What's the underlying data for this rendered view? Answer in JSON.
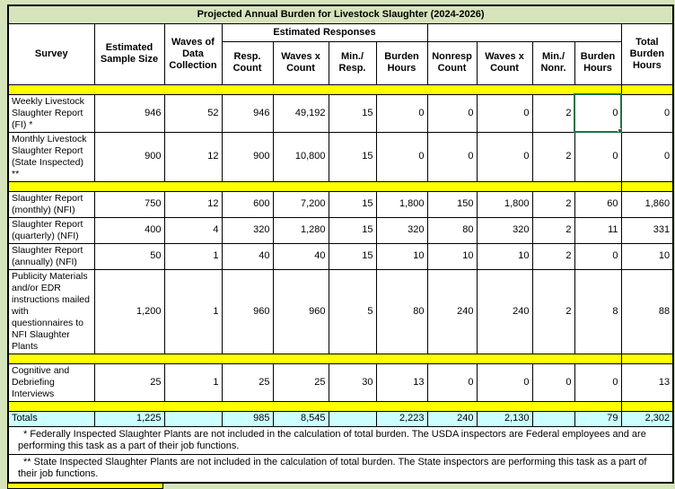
{
  "title": "Projected Annual Burden for Livestock Slaughter (2024-2026)",
  "header": {
    "survey": "Survey",
    "sample_size": "Estimated Sample Size",
    "waves": "Waves of Data Collection",
    "est_responses": "Estimated Responses",
    "nonresponse_group": "",
    "total_burden": "Total Burden Hours",
    "sub": [
      "Resp. Count",
      "Waves x Count",
      "Min./ Resp.",
      "Burden Hours",
      "Nonresp Count",
      "Waves x Count",
      "Min./ Nonr.",
      "Burden Hours"
    ]
  },
  "rows": [
    {
      "type": "separator"
    },
    {
      "type": "data",
      "survey": "Weekly Livestock Slaughter Report (FI) *",
      "values": [
        "946",
        "52",
        "946",
        "49,192",
        "15",
        "0",
        "0",
        "0",
        "2",
        "0",
        "0"
      ],
      "selected": 9
    },
    {
      "type": "data",
      "survey": "Monthly Livestock Slaughter Report (State Inspected) **",
      "values": [
        "900",
        "12",
        "900",
        "10,800",
        "15",
        "0",
        "0",
        "0",
        "2",
        "0",
        "0"
      ]
    },
    {
      "type": "separator"
    },
    {
      "type": "data",
      "survey": "Slaughter Report (monthly) (NFI)",
      "values": [
        "750",
        "12",
        "600",
        "7,200",
        "15",
        "1,800",
        "150",
        "1,800",
        "2",
        "60",
        "1,860"
      ]
    },
    {
      "type": "data",
      "survey": "Slaughter Report (quarterly) (NFI)",
      "values": [
        "400",
        "4",
        "320",
        "1,280",
        "15",
        "320",
        "80",
        "320",
        "2",
        "11",
        "331"
      ]
    },
    {
      "type": "data",
      "survey": "Slaughter Report (annually) (NFI)",
      "values": [
        "50",
        "1",
        "40",
        "40",
        "15",
        "10",
        "10",
        "10",
        "2",
        "0",
        "10"
      ]
    },
    {
      "type": "data",
      "survey": "Publicity Materials and/or EDR instructions mailed with questionnaires to NFI Slaughter Plants",
      "values": [
        "1,200",
        "1",
        "960",
        "960",
        "5",
        "80",
        "240",
        "240",
        "2",
        "8",
        "88"
      ]
    },
    {
      "type": "separator"
    },
    {
      "type": "data",
      "survey": "Cognitive and Debriefing Interviews",
      "values": [
        "25",
        "1",
        "25",
        "25",
        "30",
        "13",
        "0",
        "0",
        "0",
        "0",
        "13"
      ]
    },
    {
      "type": "separator"
    },
    {
      "type": "totals",
      "survey": "Totals",
      "values": [
        "1,225",
        "",
        "985",
        "8,545",
        "",
        "2,223",
        "240",
        "2,130",
        "",
        "79",
        "2,302"
      ]
    }
  ],
  "footnotes": [
    "* Federally Inspected Slaughter Plants are not included in the calculation of total burden.  The USDA inspectors are Federal employees and are performing this task as a part of their job functions.",
    "** State Inspected Slaughter Plants are not included in the calculation of total burden.  The State inspectors are performing this task as a part of their job functions."
  ],
  "selection": {
    "row": "Weekly Livestock Slaughter Report (FI) *",
    "column": "Burden Hours",
    "value": "0"
  },
  "colors": {
    "background_green": "#D6E4BC",
    "title_green": "#D6E4BC",
    "separator_yellow": "#FFFF00",
    "totals_cyan": "#CCFFFF",
    "selection_green": "#1F7246",
    "border_black": "#000000"
  }
}
